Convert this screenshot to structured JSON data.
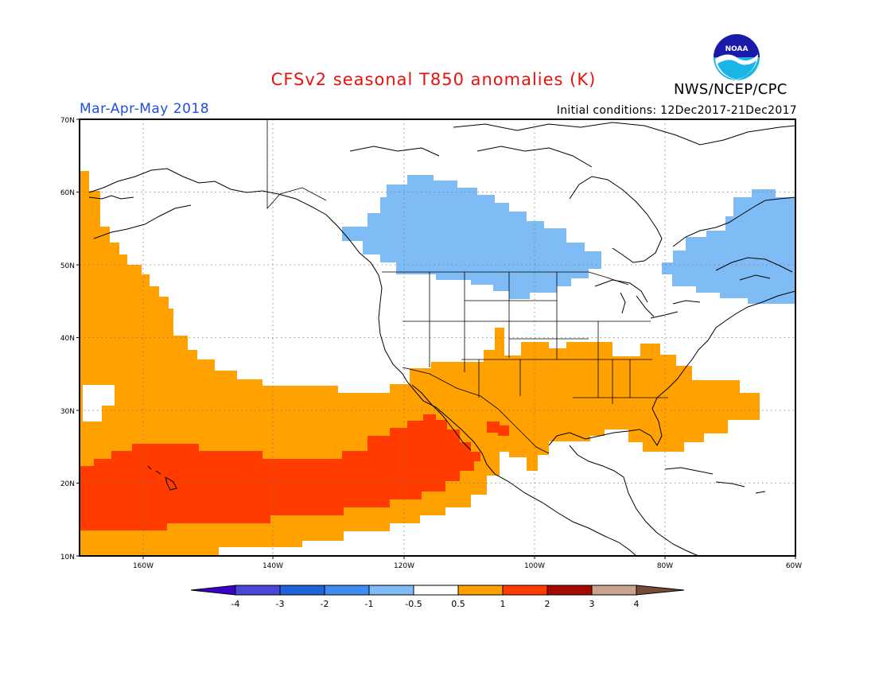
{
  "title": "CFSv2 seasonal T850 anomalies (K)",
  "period": "Mar-Apr-May 2018",
  "initial_conditions": "Initial conditions: 12Dec2017-21Dec2017",
  "agency": "NWS/NCEP/CPC",
  "logo": {
    "icon": "noaa-logo-icon",
    "text": "NOAA"
  },
  "map": {
    "projection": "cylindrical equidistant",
    "lon_range": [
      -172,
      -60
    ],
    "lat_range": [
      10,
      70
    ],
    "lat_ticks": [
      "10N",
      "20N",
      "30N",
      "40N",
      "50N",
      "60N",
      "70N"
    ],
    "lon_ticks": [
      "160W",
      "140W",
      "120W",
      "100W",
      "80W",
      "60W"
    ],
    "gridlines": "dotted",
    "anomaly_regions": [
      {
        "category": "0.5 to 1",
        "color": "#ffa100",
        "region": "eastern Pacific, southwestern and southeastern US, western Atlantic"
      },
      {
        "category": "1 to 2",
        "color": "#ff3b00",
        "region": "subtropical Pacific from Hawaii to Baja California"
      },
      {
        "category": "-1 to -0.5",
        "color": "#7fbcf6",
        "region": "southern Canada prairies and eastern Canada / Labrador Sea"
      }
    ]
  },
  "colorbar": {
    "labels": [
      "-4",
      "-3",
      "-2",
      "-1",
      "-0.5",
      "0.5",
      "1",
      "2",
      "3",
      "4"
    ],
    "colors": [
      "#3a00c8",
      "#4a47d6",
      "#1e63d8",
      "#3f8cf0",
      "#7fbcf6",
      "#ffffff",
      "#ffa100",
      "#ff3b00",
      "#a30a00",
      "#c8a38d",
      "#7a4a38"
    ]
  }
}
